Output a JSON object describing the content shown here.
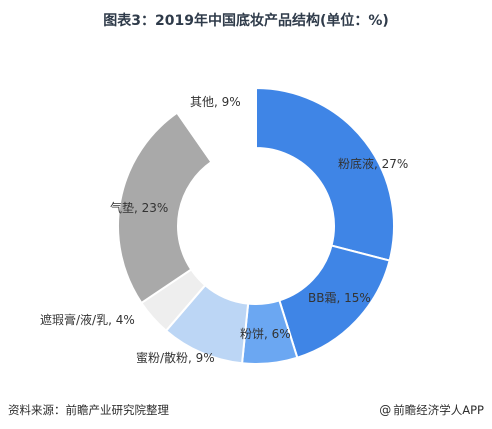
{
  "title": "图表3：2019年中国底妆产品结构(单位：%)",
  "source": "资料来源：前瞻产业研究院整理",
  "brand": "前瞻经济学人APP",
  "brand_icon": "at-icon",
  "chart_data": {
    "type": "pie",
    "donut": true,
    "start": "12 o'clock, clockwise",
    "categories": [
      "粉底液",
      "BB霜",
      "粉饼",
      "蜜粉/散粉",
      "遮瑕膏/液/乳",
      "气垫",
      "其他"
    ],
    "values": [
      27,
      15,
      6,
      9,
      4,
      23,
      9
    ],
    "labels": [
      "粉底液, 27%",
      "BB霜, 15%",
      "粉饼, 6%",
      "蜜粉/散粉, 9%",
      "遮瑕膏/液/乳, 4%",
      "气垫, 23%",
      "其他, 9%"
    ],
    "colors": [
      "#3f85e6",
      "#3f85e6",
      "#6ba7f2",
      "#bcd6f5",
      "#eeeeee",
      "#a9a9a9",
      "#ffffff"
    ],
    "unit": "%"
  }
}
